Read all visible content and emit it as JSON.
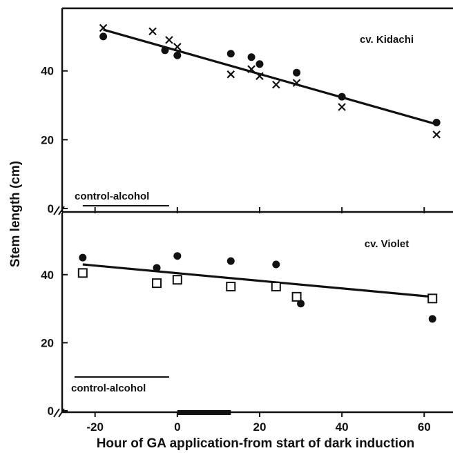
{
  "chart_data": [
    {
      "type": "scatter",
      "panel_label": "cv. Kidachi",
      "control_label": "control-alcohol",
      "control_x": [
        -23,
        -2
      ],
      "xlim": [
        -28,
        67
      ],
      "ylim": [
        0,
        57
      ],
      "y_ticks": [
        0,
        20,
        40
      ],
      "series": [
        {
          "marker": "circle",
          "x": [
            -18,
            -3,
            0,
            13,
            18,
            20,
            29,
            40,
            63
          ],
          "y": [
            50,
            46,
            44.5,
            45,
            44,
            42,
            39.5,
            32.5,
            25
          ]
        },
        {
          "marker": "cross",
          "x": [
            -18,
            -6,
            -2,
            0,
            13,
            18,
            20,
            24,
            29,
            40,
            63
          ],
          "y": [
            52.5,
            51.5,
            49,
            47,
            39,
            40.5,
            38.5,
            36,
            36.5,
            29.5,
            21.5
          ]
        }
      ],
      "fit_line": {
        "x": [
          -18,
          63
        ],
        "y": [
          52,
          24.5
        ]
      }
    },
    {
      "type": "scatter",
      "panel_label": "cv. Violet",
      "control_label": "control-alcohol",
      "control_x": [
        -25,
        -2
      ],
      "xlim": [
        -28,
        67
      ],
      "ylim": [
        0,
        57
      ],
      "y_ticks": [
        0,
        20,
        40
      ],
      "series": [
        {
          "marker": "circle",
          "x": [
            -23,
            -5,
            0,
            13,
            24,
            30,
            62
          ],
          "y": [
            45,
            42,
            45.5,
            44,
            43,
            31.5,
            27
          ]
        },
        {
          "marker": "square",
          "x": [
            -23,
            -5,
            0,
            13,
            24,
            29,
            62
          ],
          "y": [
            40.5,
            37.5,
            38.5,
            36.5,
            36.5,
            33.5,
            33
          ]
        }
      ],
      "fit_line": {
        "x": [
          -23,
          62
        ],
        "y": [
          43,
          33.5
        ]
      }
    }
  ],
  "x_ticks": [
    -20,
    0,
    20,
    40,
    60
  ],
  "dark_induction_x": [
    0,
    13
  ],
  "xlabel": "Hour of GA application-from start of dark induction",
  "ylabel": "Stem length (cm)"
}
